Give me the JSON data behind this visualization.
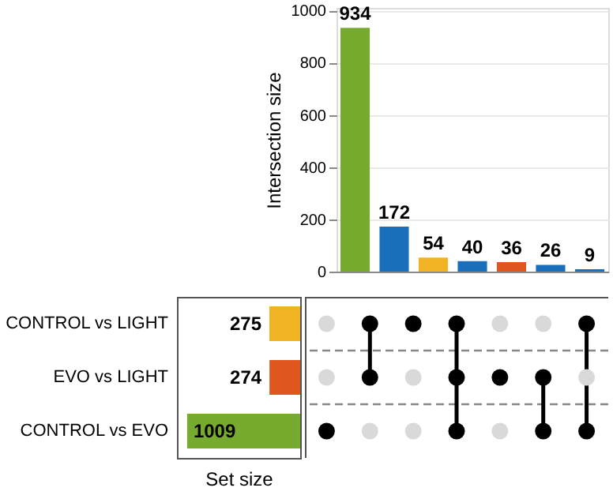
{
  "chart_data": [
    {
      "type": "bar",
      "ylabel": "Intersection size",
      "categories": [
        null,
        null,
        null,
        null,
        null,
        null,
        null
      ],
      "values": [
        934,
        172,
        54,
        40,
        36,
        26,
        9
      ],
      "colors": [
        "#77ab2f",
        "#1a6fba",
        "#f0b323",
        "#1a6fba",
        "#e0561f",
        "#1a6fba",
        "#1a6fba"
      ],
      "ylim": [
        0,
        1010
      ],
      "yticks": [
        0,
        200,
        400,
        600,
        800,
        1000
      ],
      "grid": "y",
      "data_labels": true
    },
    {
      "type": "bar",
      "orientation": "horizontal",
      "xlabel": "Set size",
      "categories": [
        "CONTROL vs LIGHT",
        "EVO vs LIGHT",
        "CONTROL vs EVO"
      ],
      "values": [
        275,
        274,
        1009
      ],
      "colors": [
        "#f0b323",
        "#e0561f",
        "#77ab2f"
      ],
      "data_labels": true,
      "tick_labels": "y"
    },
    {
      "type": "other",
      "categories": [
        null,
        null,
        null,
        null,
        null,
        null,
        null
      ],
      "cells": [
        [
          false,
          true,
          true,
          true,
          false,
          false,
          true
        ],
        [
          false,
          true,
          false,
          true,
          true,
          true,
          false
        ],
        [
          true,
          false,
          false,
          true,
          false,
          true,
          true
        ]
      ]
    }
  ]
}
